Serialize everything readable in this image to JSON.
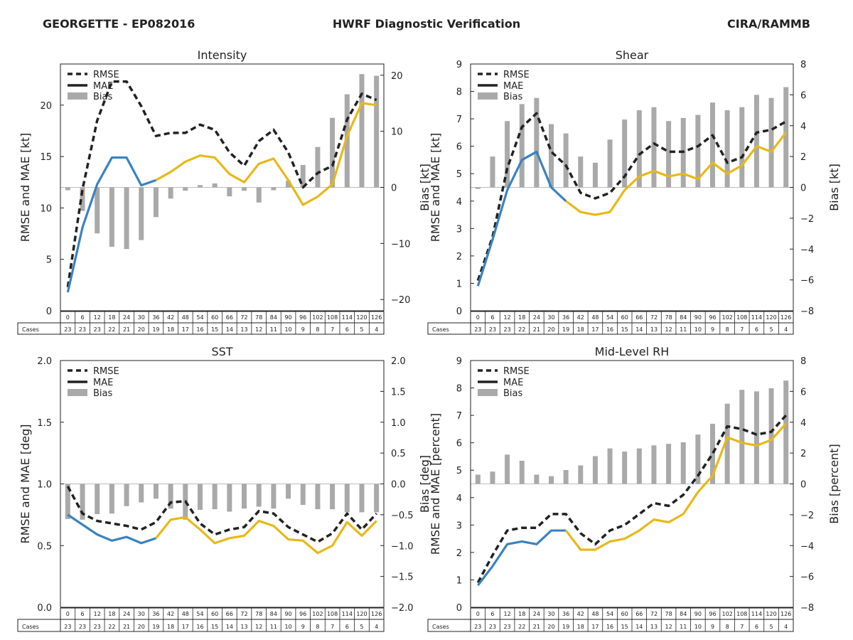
{
  "header": {
    "left": "GEORGETTE - EP082016",
    "center": "HWRF Diagnostic Verification",
    "right": "CIRA/RAMMB"
  },
  "colors": {
    "rmse": "#222222",
    "mae_early": "#3a82c0",
    "mae_late": "#e8b818",
    "bias": "#a9a9a9"
  },
  "legend": [
    "RMSE",
    "MAE",
    "Bias"
  ],
  "lead_times": [
    "0",
    "6",
    "12",
    "18",
    "24",
    "30",
    "36",
    "42",
    "48",
    "54",
    "60",
    "66",
    "72",
    "78",
    "84",
    "90",
    "96",
    "102",
    "108",
    "114",
    "120",
    "126"
  ],
  "cases_label": "Cases",
  "cases": [
    "23",
    "23",
    "23",
    "22",
    "21",
    "20",
    "19",
    "18",
    "17",
    "16",
    "15",
    "14",
    "13",
    "12",
    "11",
    "10",
    "9",
    "8",
    "7",
    "6",
    "5",
    "4"
  ],
  "chart_data": [
    {
      "type": "line",
      "title": "Intensity",
      "ylabel": "RMSE and MAE [kt]",
      "y2label": "Bias [kt]",
      "ylim": [
        0,
        24
      ],
      "yticks": [
        0,
        5,
        10,
        15,
        20
      ],
      "y2lim": [
        -22,
        22
      ],
      "y2ticks": [
        -20,
        -10,
        0,
        10,
        20
      ],
      "x": [
        0,
        6,
        12,
        18,
        24,
        30,
        36,
        42,
        48,
        54,
        60,
        66,
        72,
        78,
        84,
        90,
        96,
        102,
        108,
        114,
        120,
        126
      ],
      "series": [
        {
          "name": "RMSE",
          "values": [
            2.3,
            11.8,
            18.5,
            22.3,
            22.3,
            19.9,
            17.0,
            17.3,
            17.3,
            18.1,
            17.6,
            15.4,
            14.1,
            16.5,
            17.6,
            15.4,
            12.0,
            13.4,
            14.1,
            18.6,
            21.1,
            20.5
          ]
        },
        {
          "name": "MAE",
          "values": [
            1.8,
            8.1,
            12.3,
            14.9,
            14.9,
            12.2,
            12.7,
            13.5,
            14.5,
            15.1,
            14.9,
            13.3,
            12.5,
            14.3,
            14.8,
            12.7,
            10.3,
            11.1,
            12.3,
            17.0,
            20.2,
            20.0
          ]
        },
        {
          "name": "Bias",
          "values": [
            -0.5,
            -4.2,
            -8.2,
            -10.6,
            -11.0,
            -9.4,
            -5.3,
            -2.0,
            -0.6,
            0.4,
            0.7,
            -1.6,
            -0.6,
            -2.7,
            -0.5,
            1.2,
            4.0,
            7.2,
            12.4,
            16.6,
            20.2,
            19.9
          ]
        }
      ]
    },
    {
      "type": "line",
      "title": "Shear",
      "ylabel": "RMSE and MAE [kt]",
      "y2label": "Bias [kt]",
      "ylim": [
        0,
        9
      ],
      "yticks": [
        0,
        1,
        2,
        3,
        4,
        5,
        6,
        7,
        8,
        9
      ],
      "y2lim": [
        -8,
        8
      ],
      "y2ticks": [
        -8,
        -6,
        -4,
        -2,
        0,
        2,
        4,
        6,
        8
      ],
      "x": [
        0,
        6,
        12,
        18,
        24,
        30,
        36,
        42,
        48,
        54,
        60,
        66,
        72,
        78,
        84,
        90,
        96,
        102,
        108,
        114,
        120,
        126
      ],
      "series": [
        {
          "name": "RMSE",
          "values": [
            1.1,
            2.7,
            5.2,
            6.7,
            7.2,
            5.8,
            5.3,
            4.3,
            4.1,
            4.3,
            4.9,
            5.7,
            6.1,
            5.8,
            5.8,
            6.0,
            6.4,
            5.4,
            5.6,
            6.5,
            6.6,
            6.9
          ]
        },
        {
          "name": "MAE",
          "values": [
            0.9,
            2.6,
            4.4,
            5.5,
            5.8,
            4.5,
            4.0,
            3.6,
            3.5,
            3.6,
            4.4,
            4.9,
            5.1,
            4.9,
            5.0,
            4.8,
            5.4,
            5.0,
            5.3,
            6.0,
            5.8,
            6.5
          ]
        },
        {
          "name": "Bias",
          "values": [
            -0.1,
            2.0,
            4.3,
            5.4,
            5.8,
            4.1,
            3.5,
            2.0,
            1.6,
            3.1,
            4.4,
            5.0,
            5.2,
            4.3,
            4.5,
            4.7,
            5.5,
            5.0,
            5.2,
            6.0,
            5.8,
            6.5
          ]
        }
      ]
    },
    {
      "type": "line",
      "title": "SST",
      "ylabel": "RMSE and MAE [deg]",
      "y2label": "Bias [deg]",
      "ylim": [
        0,
        2
      ],
      "yticks": [
        0.0,
        0.5,
        1.0,
        1.5,
        2.0
      ],
      "y2lim": [
        -2,
        2
      ],
      "y2ticks": [
        -2.0,
        -1.5,
        -1.0,
        -0.5,
        0.0,
        0.5,
        1.0,
        1.5,
        2.0
      ],
      "x": [
        0,
        6,
        12,
        18,
        24,
        30,
        36,
        42,
        48,
        54,
        60,
        66,
        72,
        78,
        84,
        90,
        96,
        102,
        108,
        114,
        120,
        126
      ],
      "series": [
        {
          "name": "RMSE",
          "values": [
            0.98,
            0.76,
            0.7,
            0.68,
            0.66,
            0.63,
            0.69,
            0.85,
            0.86,
            0.68,
            0.59,
            0.63,
            0.65,
            0.78,
            0.76,
            0.65,
            0.59,
            0.53,
            0.6,
            0.76,
            0.63,
            0.76
          ]
        },
        {
          "name": "MAE",
          "values": [
            0.75,
            0.67,
            0.59,
            0.54,
            0.57,
            0.52,
            0.56,
            0.71,
            0.73,
            0.63,
            0.52,
            0.56,
            0.58,
            0.7,
            0.66,
            0.55,
            0.54,
            0.44,
            0.5,
            0.69,
            0.58,
            0.7
          ]
        },
        {
          "name": "Bias",
          "values": [
            -0.57,
            -0.58,
            -0.49,
            -0.48,
            -0.36,
            -0.3,
            -0.24,
            -0.4,
            -0.58,
            -0.42,
            -0.41,
            -0.45,
            -0.4,
            -0.37,
            -0.4,
            -0.24,
            -0.34,
            -0.41,
            -0.41,
            -0.46,
            -0.46,
            -0.46
          ]
        }
      ]
    },
    {
      "type": "line",
      "title": "Mid-Level RH",
      "ylabel": "RMSE and MAE [percent]",
      "y2label": "Bias [percent]",
      "ylim": [
        0,
        9
      ],
      "yticks": [
        0,
        1,
        2,
        3,
        4,
        5,
        6,
        7,
        8,
        9
      ],
      "y2lim": [
        -8,
        8
      ],
      "y2ticks": [
        -8,
        -6,
        -4,
        -2,
        0,
        2,
        4,
        6,
        8
      ],
      "x": [
        0,
        6,
        12,
        18,
        24,
        30,
        36,
        42,
        48,
        54,
        60,
        66,
        72,
        78,
        84,
        90,
        96,
        102,
        108,
        114,
        120,
        126
      ],
      "series": [
        {
          "name": "RMSE",
          "values": [
            0.9,
            1.9,
            2.8,
            2.9,
            2.9,
            3.4,
            3.4,
            2.7,
            2.3,
            2.8,
            3.0,
            3.4,
            3.8,
            3.7,
            4.1,
            4.8,
            5.6,
            6.6,
            6.5,
            6.3,
            6.4,
            7.0
          ]
        },
        {
          "name": "MAE",
          "values": [
            0.8,
            1.5,
            2.3,
            2.4,
            2.3,
            2.8,
            2.8,
            2.1,
            2.1,
            2.4,
            2.5,
            2.8,
            3.2,
            3.1,
            3.4,
            4.2,
            4.8,
            6.2,
            6.0,
            5.9,
            6.1,
            6.7
          ]
        },
        {
          "name": "Bias",
          "values": [
            0.6,
            0.8,
            1.9,
            1.5,
            0.6,
            0.5,
            0.9,
            1.2,
            1.8,
            2.3,
            2.1,
            2.3,
            2.5,
            2.6,
            2.7,
            3.2,
            3.9,
            5.2,
            6.1,
            6.0,
            6.2,
            6.7
          ]
        }
      ]
    }
  ]
}
